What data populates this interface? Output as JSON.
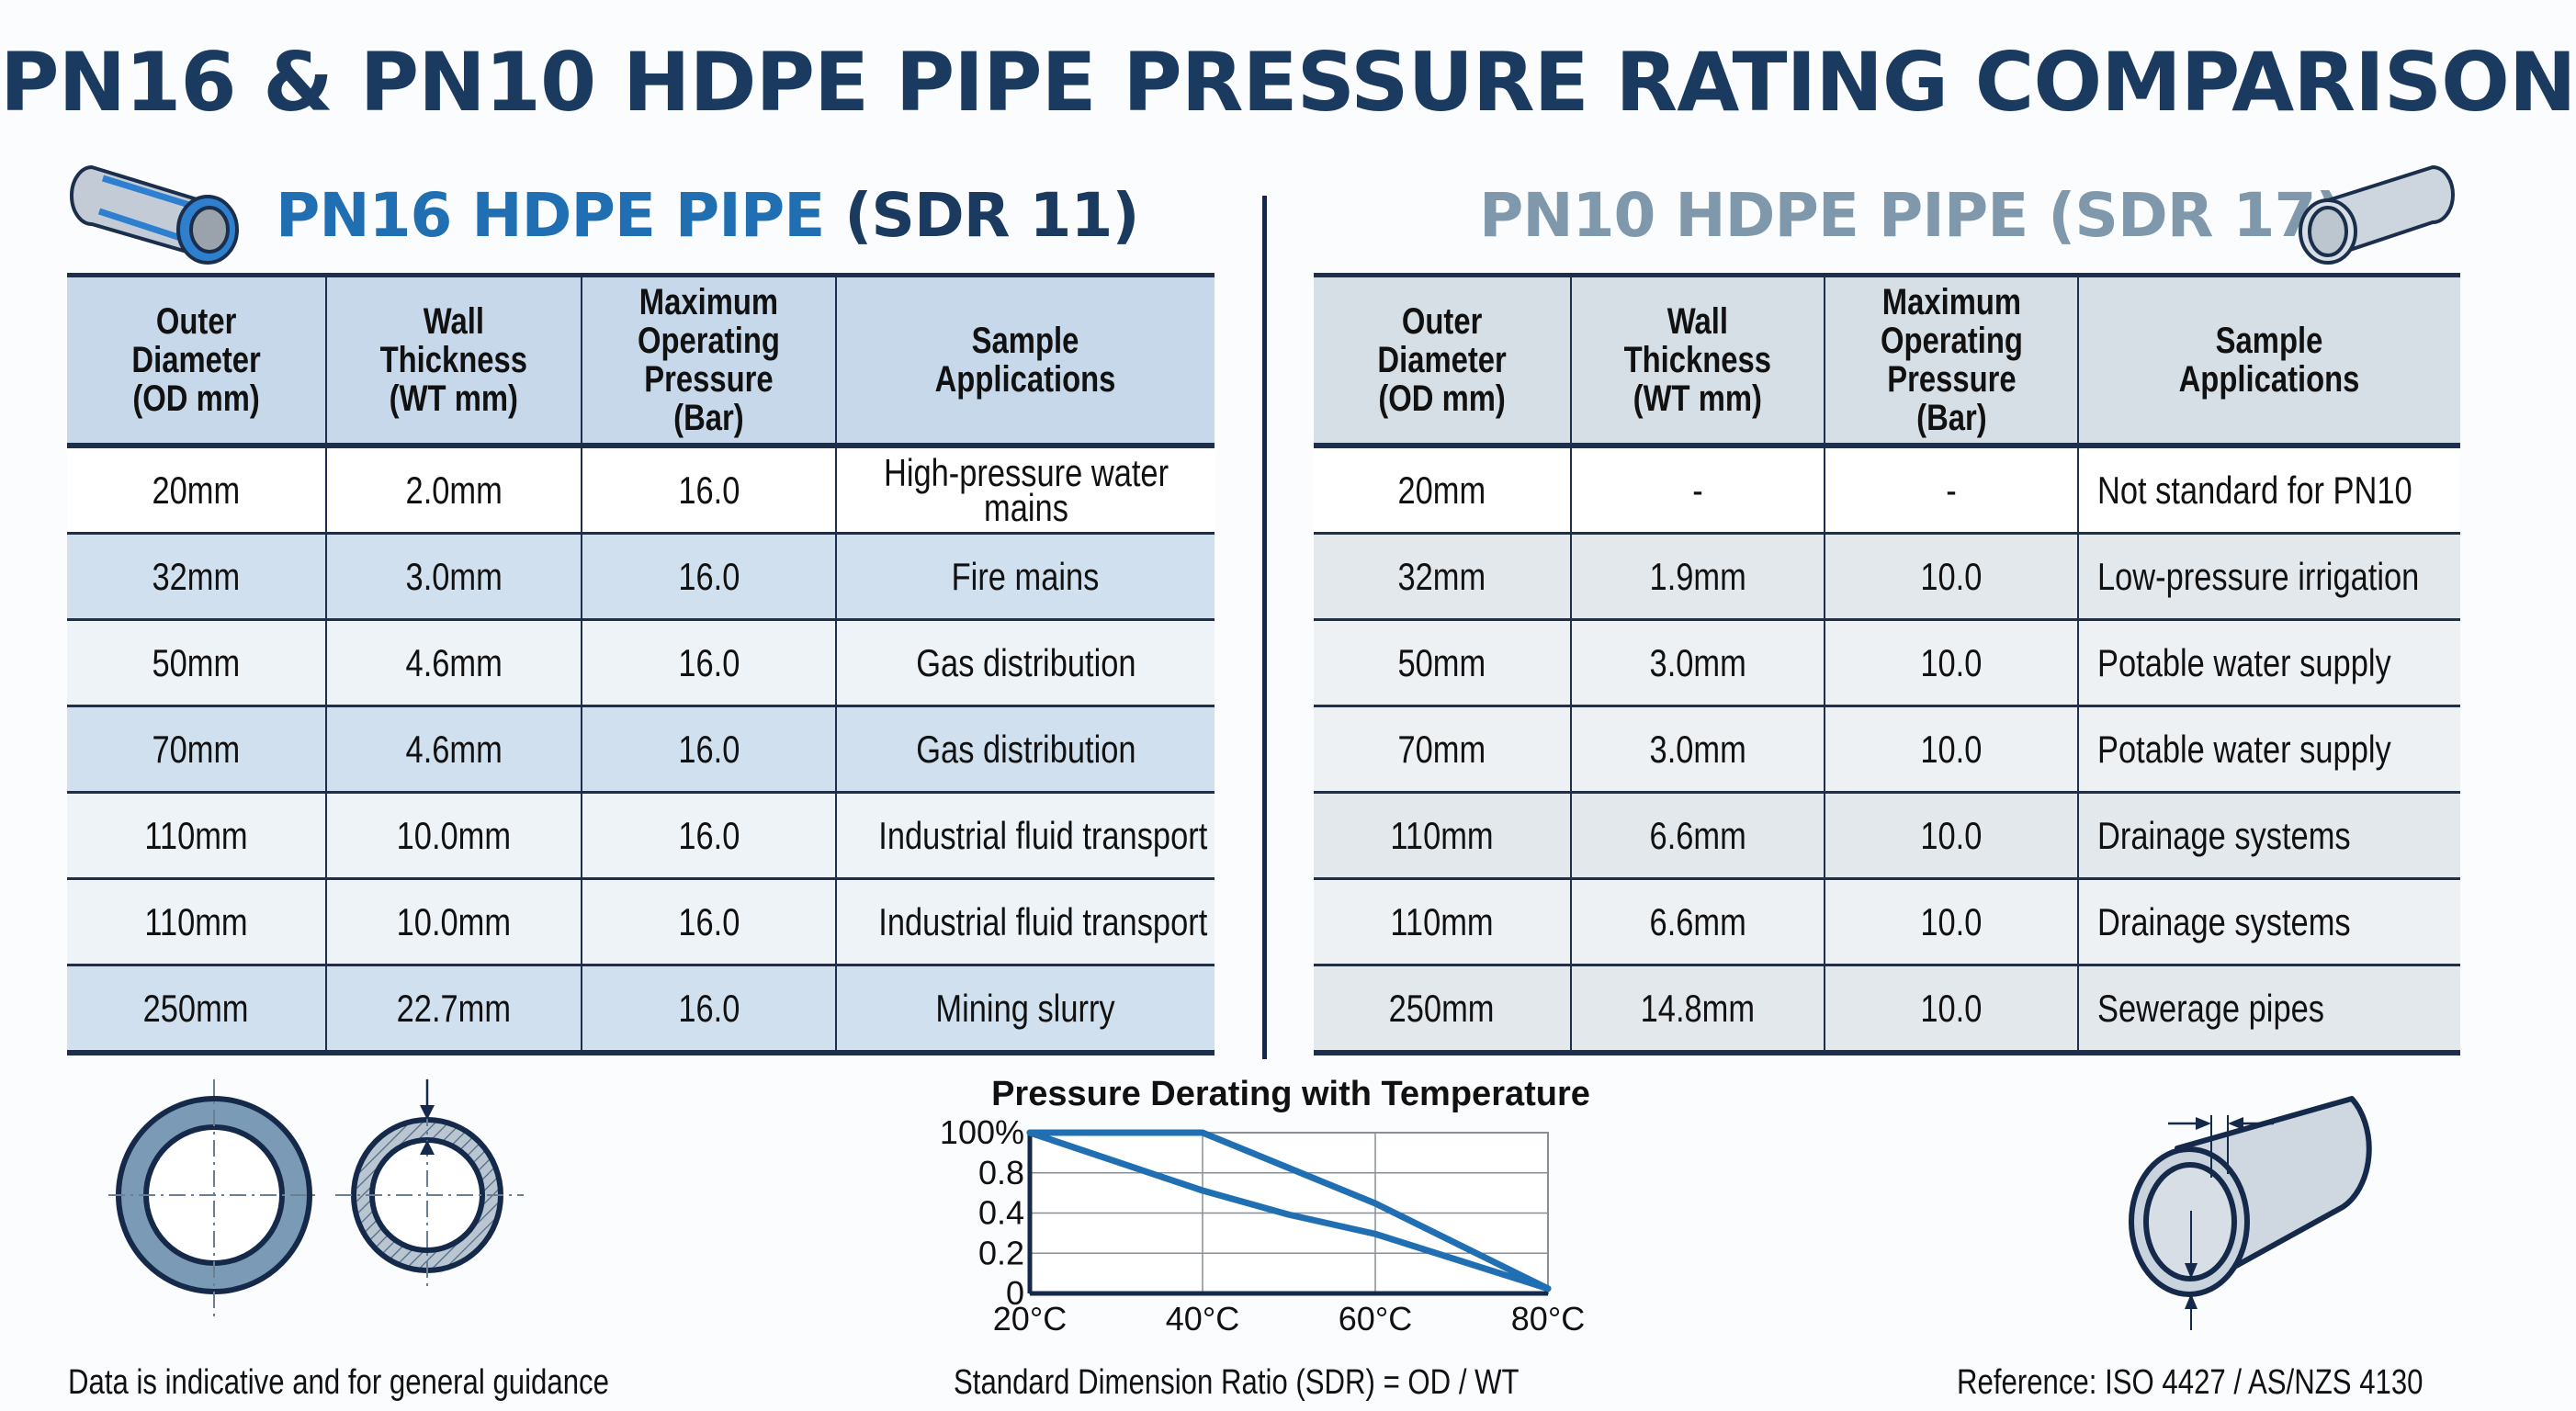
{
  "title": "PN16 & PN10 HDPE PIPE PRESSURE RATING COMPARISON",
  "colors": {
    "title": "#1b3a5f",
    "pn16_accent": "#1f6fb2",
    "pn10_accent": "#8098ab",
    "border": "#1d2f4d",
    "chart_line": "#1f6fb2"
  },
  "pn16": {
    "heading_main": "PN16 HDPE PIPE",
    "heading_sdr": "(SDR 11)",
    "icon": "blue-pipe-icon",
    "columns": [
      "Outer Diameter (OD mm)",
      "Wall Thickness (WT mm)",
      "Maximum Operating Pressure (Bar)",
      "Sample Applications"
    ],
    "columns_lines": [
      [
        "Outer",
        "Diameter",
        "(OD mm)"
      ],
      [
        "Wall",
        "Thickness",
        "(WT mm)"
      ],
      [
        "Maximum",
        "Operating",
        "Pressure",
        "(Bar)"
      ],
      [
        "Sample",
        "Applications"
      ]
    ],
    "rows": [
      {
        "od": "20mm",
        "wt": "2.0mm",
        "pressure": "16.0",
        "application": "High-pressure water mains"
      },
      {
        "od": "32mm",
        "wt": "3.0mm",
        "pressure": "16.0",
        "application": "Fire mains"
      },
      {
        "od": "50mm",
        "wt": "4.6mm",
        "pressure": "16.0",
        "application": "Gas distribution"
      },
      {
        "od": "70mm",
        "wt": "4.6mm",
        "pressure": "16.0",
        "application": "Gas distribution"
      },
      {
        "od": "110mm",
        "wt": "10.0mm",
        "pressure": "16.0",
        "application": "Industrial fluid transport"
      },
      {
        "od": "110mm",
        "wt": "10.0mm",
        "pressure": "16.0",
        "application": "Industrial fluid transport"
      },
      {
        "od": "250mm",
        "wt": "22.7mm",
        "pressure": "16.0",
        "application": "Mining slurry"
      }
    ]
  },
  "pn10": {
    "heading": "PN10 HDPE PIPE (SDR 17)",
    "icon": "grey-pipe-icon",
    "columns": [
      "Outer Diameter (OD mm)",
      "Wall Thickness (WT mm)",
      "Maximum Operating Pressure (Bar)",
      "Sample Applications"
    ],
    "columns_lines": [
      [
        "Outer",
        "Diameter",
        "(OD mm)"
      ],
      [
        "Wall",
        "Thickness",
        "(WT mm)"
      ],
      [
        "Maximum",
        "Operating",
        "Pressure",
        "(Bar)"
      ],
      [
        "Sample",
        "Applications"
      ]
    ],
    "rows": [
      {
        "od": "20mm",
        "wt": "-",
        "pressure": "-",
        "application": "Not standard for PN10"
      },
      {
        "od": "32mm",
        "wt": "1.9mm",
        "pressure": "10.0",
        "application": "Low-pressure irrigation"
      },
      {
        "od": "50mm",
        "wt": "3.0mm",
        "pressure": "10.0",
        "application": "Potable water supply"
      },
      {
        "od": "70mm",
        "wt": "3.0mm",
        "pressure": "10.0",
        "application": "Potable water supply"
      },
      {
        "od": "110mm",
        "wt": "6.6mm",
        "pressure": "10.0",
        "application": "Drainage systems"
      },
      {
        "od": "110mm",
        "wt": "6.6mm",
        "pressure": "10.0",
        "application": "Drainage systems"
      },
      {
        "od": "250mm",
        "wt": "14.8mm",
        "pressure": "10.0",
        "application": "Sewerage pipes"
      }
    ]
  },
  "chart_data": {
    "type": "line",
    "title": "Pressure Derating with Temperature",
    "xlabel": "",
    "ylabel": "",
    "x": [
      20,
      40,
      60,
      80
    ],
    "x_tick_labels": [
      "20°C",
      "40°C",
      "60°C",
      "80°C"
    ],
    "y_tick_labels": [
      "0",
      "0.2",
      "0.4",
      "0.8",
      "100%"
    ],
    "y_axis_note": "tick labels are evenly spaced; series values given as fraction of axis height (0 = bottom, 1 = top)",
    "xlim": [
      20,
      80
    ],
    "ylim": [
      0,
      1
    ],
    "grid": true,
    "legend": "none",
    "series": [
      {
        "name": "upper curve",
        "x": [
          20,
          40,
          60,
          80
        ],
        "values": [
          1.0,
          1.0,
          0.56,
          0.03
        ]
      },
      {
        "name": "lower curve",
        "x": [
          20,
          40,
          50,
          60,
          70,
          80
        ],
        "values": [
          1.0,
          0.64,
          0.49,
          0.37,
          0.2,
          0.03
        ]
      }
    ]
  },
  "diagrams": {
    "left": [
      "thick-wall-pipe-section-icon",
      "hatched-pipe-section-icon"
    ],
    "right": "pipe-wall-thickness-diagram-icon"
  },
  "footer": {
    "left": "Data is indicative and for general guidance",
    "center": "Standard Dimension Ratio (SDR) = OD / WT",
    "right": "Reference: ISO 4427 / AS/NZS 4130"
  }
}
